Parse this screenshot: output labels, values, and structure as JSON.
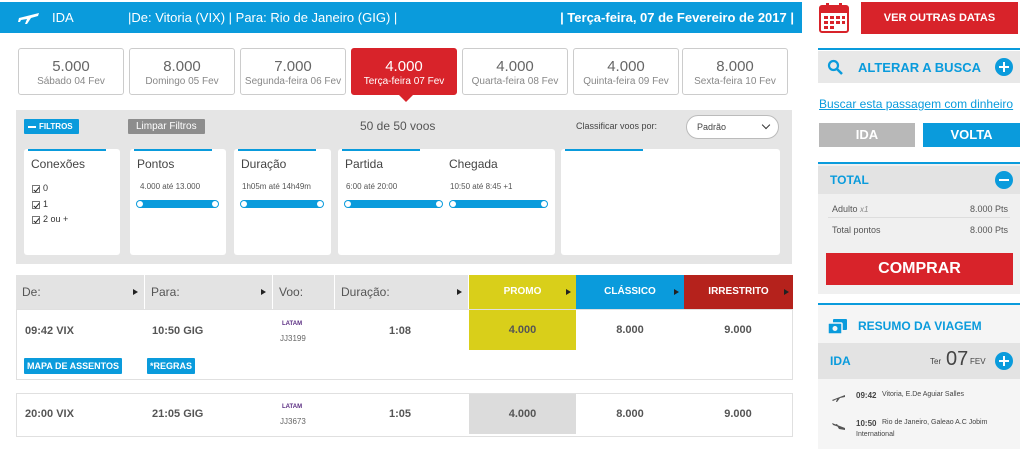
{
  "topbar": {
    "direction": "IDA",
    "route": "|De: Vitoria (VIX)  |  Para: Rio de Janeiro (GIG)  |",
    "date": "|  Terça-feira, 07 de Fevereiro de 2017  |"
  },
  "dates": [
    {
      "points": "5.000",
      "label": "Sábado 04 Fev",
      "selected": false
    },
    {
      "points": "8.000",
      "label": "Domingo 05 Fev",
      "selected": false
    },
    {
      "points": "7.000",
      "label": "Segunda-feira 06 Fev",
      "selected": false
    },
    {
      "points": "4.000",
      "label": "Terça-feira 07 Fev",
      "selected": true
    },
    {
      "points": "4.000",
      "label": "Quarta-feira 08 Fev",
      "selected": false
    },
    {
      "points": "4.000",
      "label": "Quinta-feira 09 Fev",
      "selected": false
    },
    {
      "points": "8.000",
      "label": "Sexta-feira 10 Fev",
      "selected": false
    }
  ],
  "filters": {
    "tag": "FILTROS",
    "clear": "Limpar Filtros",
    "count": "50 de 50 voos",
    "sort_label": "Classificar voos por:",
    "sort_value": "Padrão",
    "connections": {
      "title": "Conexões",
      "options": [
        "0",
        "1",
        "2 ou +"
      ]
    },
    "points": {
      "title": "Pontos",
      "range": "4.000  até  13.000"
    },
    "duration": {
      "title": "Duração",
      "range": "1h05m  até  14h49m"
    },
    "departure": {
      "title": "Partida",
      "range": "6:00  até  20:00"
    },
    "arrival": {
      "title": "Chegada",
      "range": "10:50  até  8:45 +1"
    }
  },
  "table": {
    "headers": {
      "from": "De:",
      "to": "Para:",
      "flight": "Voo:",
      "duration": "Duração:"
    },
    "fares": {
      "promo": "PROMO",
      "classic": "CLÁSSICO",
      "unrestricted": "IRRESTRITO"
    },
    "colors": {
      "promo": "#d9cf1a",
      "classic": "#0a9bdc",
      "unrestricted": "#b5221c"
    },
    "rows": [
      {
        "dep": "09:42 VIX",
        "arr": "10:50 GIG",
        "airline": "LATAM",
        "flight": "JJ3199",
        "duration": "1:08",
        "promo": "4.000",
        "classic": "8.000",
        "unrestricted": "9.000"
      },
      {
        "dep": "20:00 VIX",
        "arr": "21:05 GIG",
        "airline": "LATAM",
        "flight": "JJ3673",
        "duration": "1:05",
        "promo": "4.000",
        "classic": "8.000",
        "unrestricted": "9.000"
      }
    ],
    "seat_map": "MAPA DE ASSENTOS",
    "rules": "*REGRAS"
  },
  "sidebar": {
    "other_dates": "VER OUTRAS DATAS",
    "alter_search": "ALTERAR A BUSCA",
    "cash_link": "Buscar esta passagem com dinheiro",
    "toggle_ida": "IDA",
    "toggle_volta": "VOLTA",
    "total": {
      "title": "TOTAL",
      "adult_label": "Adulto",
      "adult_qty": "x1",
      "adult_value": "8.000 Pts",
      "total_label": "Total pontos",
      "total_value": "8.000 Pts"
    },
    "buy": "COMPRAR",
    "summary": {
      "title": "RESUMO DA VIAGEM",
      "leg": "IDA",
      "weekday": "Ter",
      "day": "07",
      "month": "FEV",
      "seg1_time": "09:42",
      "seg1_place": "Vitoria, E.De Aguiar Salles",
      "seg2_time": "10:50",
      "seg2_place": "Rio de Janeiro, Galeao A.C Jobim",
      "seg2_place2": "International"
    }
  }
}
